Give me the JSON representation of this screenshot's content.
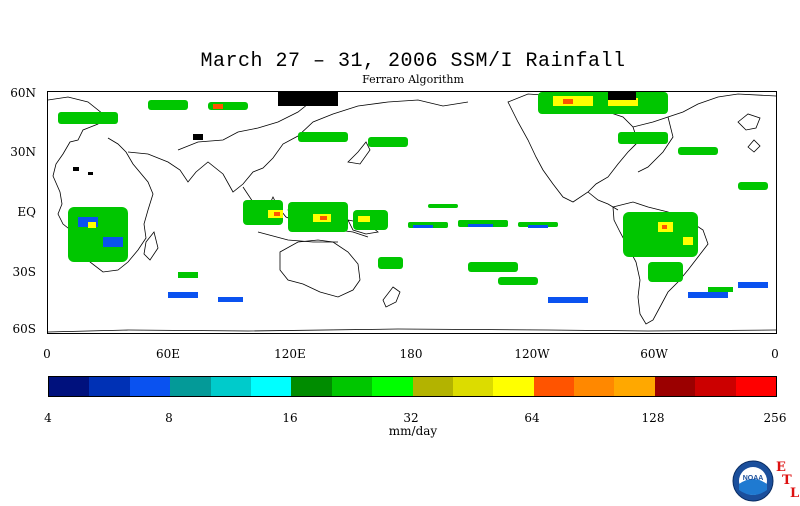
{
  "title": "March 27 – 31, 2006 SSM/I Rainfall",
  "subtitle": "Ferraro Algorithm",
  "lat_labels": [
    "60N",
    "30N",
    "EQ",
    "30S",
    "60S"
  ],
  "lon_labels": [
    "0",
    "60E",
    "120E",
    "180",
    "120W",
    "60W",
    "0"
  ],
  "colorbar": {
    "colors": [
      "#00117d",
      "#0031b5",
      "#0a52f0",
      "#049a98",
      "#00cbcb",
      "#00ffff",
      "#008c00",
      "#00c600",
      "#00ff00",
      "#b3b300",
      "#dcdc00",
      "#ffff00",
      "#ff5400",
      "#ff8800",
      "#ffa800",
      "#9b0000",
      "#cc0000",
      "#ff0000"
    ],
    "tick_labels": [
      "4",
      "8",
      "16",
      "32",
      "64",
      "128",
      "256"
    ],
    "units": "mm/day"
  },
  "logo": {
    "icon": "noaa-logo-icon",
    "label": "NOAA",
    "etl": [
      "E",
      "T",
      "L"
    ]
  }
}
